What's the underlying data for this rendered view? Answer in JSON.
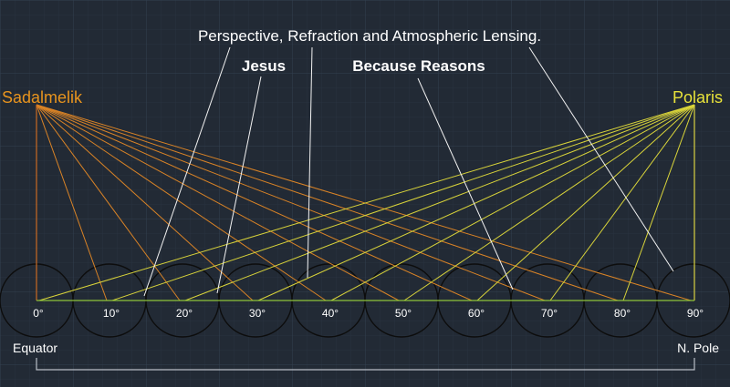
{
  "annotations": {
    "main": "Perspective, Refraction and Atmospheric Lensing.",
    "jesus": "Jesus",
    "because": "Because Reasons"
  },
  "stars": {
    "left": "Sadalmelik",
    "right": "Polaris"
  },
  "degrees": [
    "0°",
    "10°",
    "20°",
    "30°",
    "40°",
    "50°",
    "60°",
    "70°",
    "80°",
    "90°"
  ],
  "bottom": {
    "left": "Equator",
    "right": "N. Pole"
  },
  "colors": {
    "background": "#222a35",
    "sadalmelik": "#e8941e",
    "polaris": "#e8e23a",
    "grid": "#2f3a48",
    "ground": "#8fc43a",
    "text": "#ffffff",
    "circle": "#0d0d0d"
  }
}
